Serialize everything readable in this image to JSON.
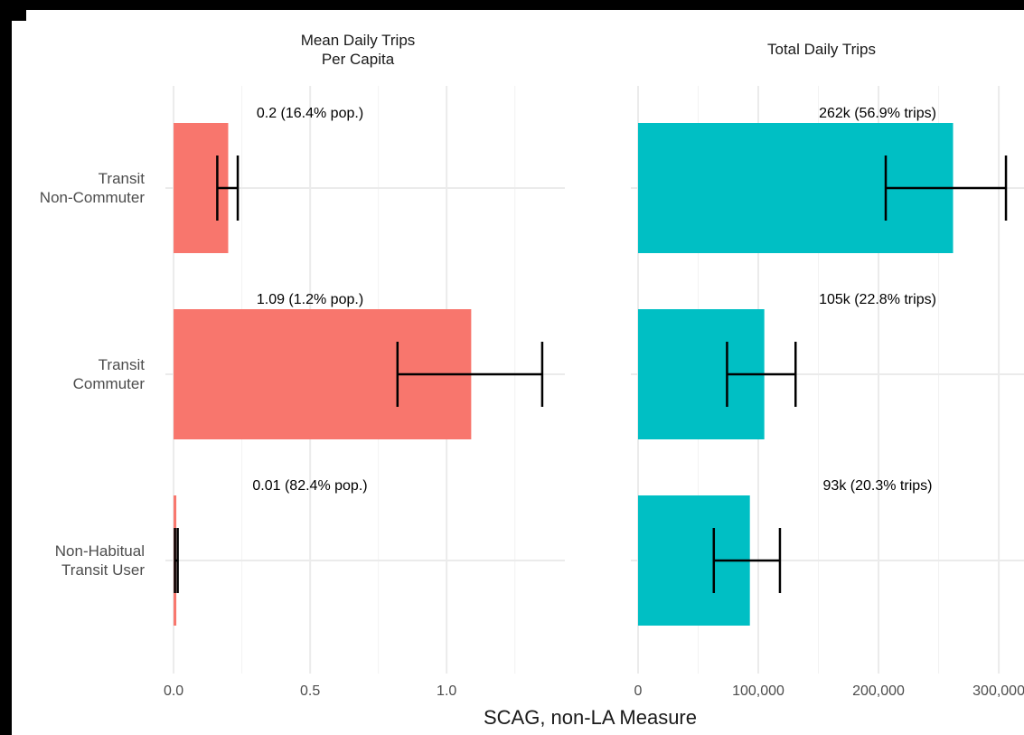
{
  "chart_data": [
    {
      "type": "hbar",
      "title": "Mean Daily Trips\nPer Capita",
      "categories": [
        "Transit\nNon-Commuter",
        "Transit\nCommuter",
        "Non-Habitual\nTransit User"
      ],
      "series": [
        {
          "color": "#F8766D",
          "values": [
            0.2,
            1.09,
            0.01
          ],
          "value_labels": [
            "0.2 (16.4% pop.)",
            "1.09 (1.2% pop.)",
            "0.01 (82.4% pop.)"
          ],
          "error_low": [
            0.16,
            0.82,
            0.005
          ],
          "error_high": [
            0.235,
            1.35,
            0.015
          ]
        }
      ],
      "xlim": [
        -0.03,
        1.433
      ],
      "xticks": [
        {
          "value": 0,
          "label": "0.0"
        },
        0.5,
        {
          "value": 1,
          "label": "1.0"
        }
      ],
      "xminor": [
        0.25,
        0.75,
        1.25
      ],
      "xlabel": "SCAG, non-LA Measure",
      "grid": true
    },
    {
      "type": "hbar",
      "title": "Total Daily Trips",
      "series": [
        {
          "color": "#00BFC4",
          "values": [
            262000,
            105000,
            93000
          ],
          "value_labels": [
            "262k (56.9% trips)",
            "105k (22.8% trips)",
            "93k (20.3% trips)"
          ],
          "error_low": [
            206000,
            74000,
            63000
          ],
          "error_high": [
            306000,
            131000,
            118000
          ]
        }
      ],
      "xlim": [
        -6000,
        321000
      ],
      "xticks": [
        0,
        {
          "value": 100000,
          "label": "100,000"
        },
        {
          "value": 200000,
          "label": "200,000"
        },
        {
          "value": 300000,
          "label": "300,000"
        }
      ],
      "xminor": [
        50000,
        150000,
        250000
      ],
      "grid": true
    }
  ]
}
